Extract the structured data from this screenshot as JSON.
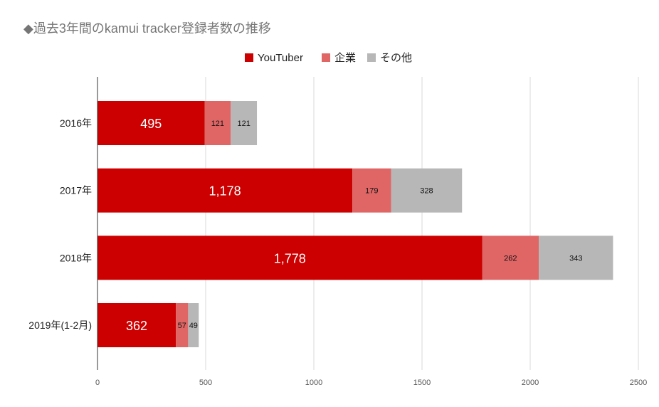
{
  "chart_data": {
    "type": "bar",
    "orientation": "horizontal",
    "stacked": true,
    "title": "◆過去3年間のkamui tracker登録者数の推移",
    "categories": [
      "2016年",
      "2017年",
      "2018年",
      "2019年(1-2月)"
    ],
    "series": [
      {
        "name": "YouTuber",
        "color": "#cc0000",
        "values": [
          495,
          1178,
          1778,
          362
        ],
        "labels": [
          "495",
          "1,178",
          "1,778",
          "362"
        ]
      },
      {
        "name": "企業",
        "color": "#e06666",
        "values": [
          121,
          179,
          262,
          57
        ],
        "labels": [
          "121",
          "179",
          "262",
          "57"
        ]
      },
      {
        "name": "その他",
        "color": "#b7b7b7",
        "values": [
          121,
          328,
          343,
          49
        ],
        "labels": [
          "121",
          "328",
          "343",
          "49"
        ]
      }
    ],
    "xlim": [
      0,
      2500
    ],
    "xticks": [
      0,
      500,
      1000,
      1500,
      2000,
      2500
    ],
    "tick_labels": [
      "0",
      "500",
      "1000",
      "1500",
      "2000",
      "2500"
    ],
    "legend_position": "top-center",
    "grid": "vertical"
  }
}
